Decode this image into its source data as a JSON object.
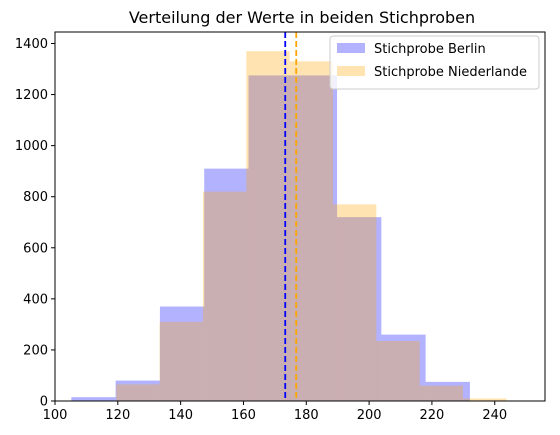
{
  "chart_data": {
    "type": "bar",
    "title": "Verteilung der Werte in beiden Stichproben",
    "xlabel": "",
    "ylabel": "",
    "xlim": [
      100,
      256
    ],
    "ylim": [
      0,
      1445
    ],
    "x_ticks": [
      100,
      120,
      140,
      160,
      180,
      200,
      220,
      240
    ],
    "y_ticks": [
      0,
      200,
      400,
      600,
      800,
      1000,
      1200,
      1400
    ],
    "grid": false,
    "legend_position": "top-right",
    "series": [
      {
        "name": "Stichprobe Berlin",
        "color": "#0000ff",
        "opacity": 0.3,
        "bin_edges": [
          105.2,
          119.3,
          133.4,
          147.5,
          161.6,
          175.7,
          189.8,
          203.9,
          218.0,
          232.1
        ],
        "counts": [
          15,
          80,
          370,
          910,
          1275,
          1275,
          720,
          260,
          75
        ]
      },
      {
        "name": "Stichprobe Niederlande",
        "color": "#ffa500",
        "opacity": 0.3,
        "bin_edges": [
          119.5,
          133.3,
          147.1,
          160.9,
          174.7,
          188.5,
          202.3,
          216.1,
          229.9,
          243.7,
          257.5
        ],
        "counts": [
          65,
          310,
          820,
          1370,
          1330,
          770,
          235,
          60,
          10,
          0
        ]
      }
    ],
    "mean_lines": [
      {
        "series": "Stichprobe Berlin",
        "value": 173.3,
        "color": "#0000ff",
        "style": "dashed"
      },
      {
        "series": "Stichprobe Niederlande",
        "value": 176.8,
        "color": "#ffa500",
        "style": "dashed"
      }
    ]
  }
}
